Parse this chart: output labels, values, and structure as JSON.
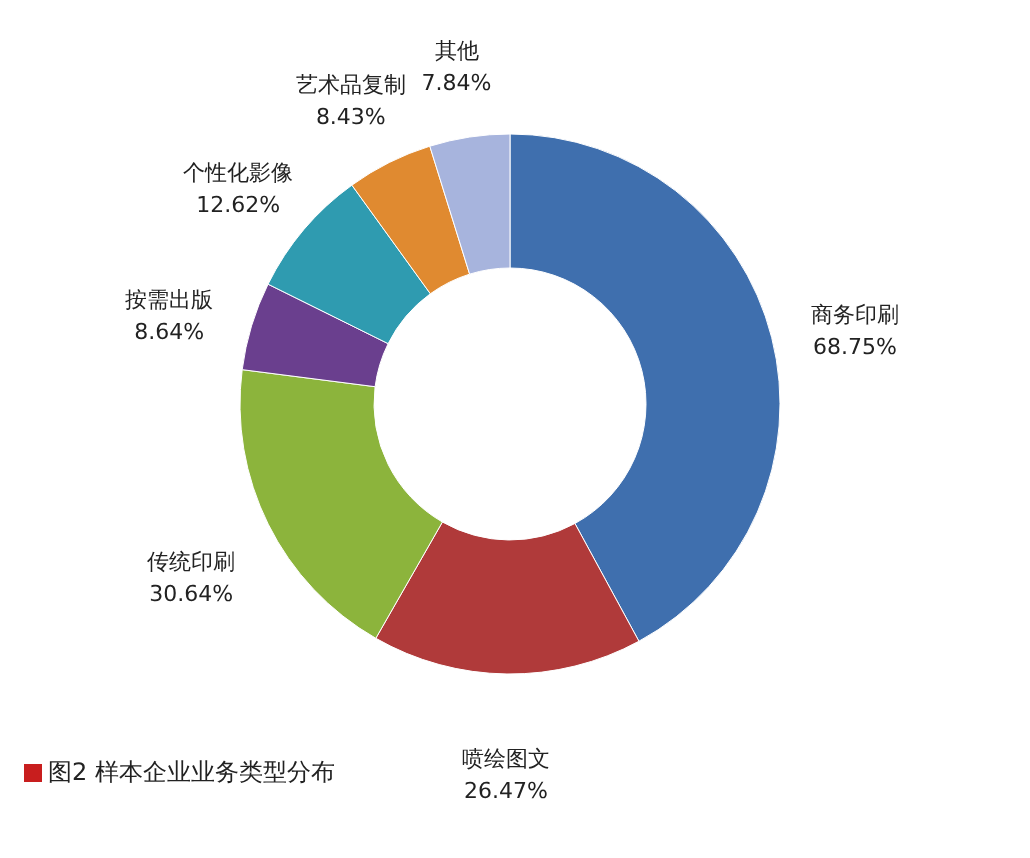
{
  "chart_data": {
    "type": "donut",
    "title": "图2 样本企业业务类型分布",
    "categories": [
      "商务印刷",
      "喷绘图文",
      "传统印刷",
      "按需出版",
      "个性化影像",
      "艺术品复制",
      "其他"
    ],
    "values": [
      68.75,
      26.47,
      30.64,
      8.64,
      12.62,
      8.43,
      7.84
    ],
    "value_labels": [
      "68.75%",
      "26.47%",
      "30.64%",
      "8.64%",
      "12.62%",
      "8.43%",
      "7.84%"
    ],
    "colors": [
      "#3f6fae",
      "#b03a3a",
      "#8cb43c",
      "#6a3f8e",
      "#2f9bb0",
      "#e08a30",
      "#a7b4dd"
    ],
    "legend": false
  }
}
